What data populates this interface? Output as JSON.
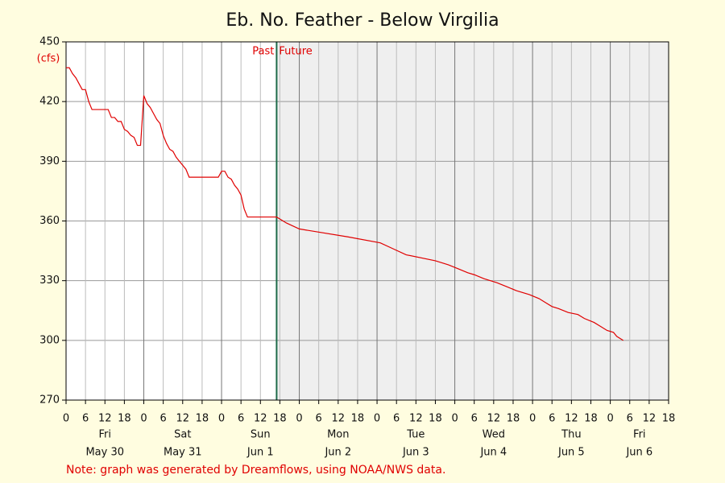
{
  "chart_data": {
    "type": "line",
    "title": "Eb. No. Feather - Below Virgilia",
    "y_label": "(cfs)",
    "note": "Note: graph was generated by Dreamflows, using NOAA/NWS data.",
    "past_label": "Past",
    "future_label": "Future",
    "now_x": 65,
    "days": [
      "Fri",
      "Sat",
      "Sun",
      "Mon",
      "Tue",
      "Wed",
      "Thu",
      "Fri"
    ],
    "dates": [
      "May 30",
      "May 31",
      "Jun 1",
      "Jun 2",
      "Jun 3",
      "Jun 4",
      "Jun 5",
      "Jun 6"
    ],
    "xlim": [
      0,
      186
    ],
    "xticks": [
      0,
      6,
      12,
      18,
      {
        "value": 24,
        "label": "0"
      },
      {
        "value": 30,
        "label": "6"
      },
      {
        "value": 36,
        "label": "12"
      },
      {
        "value": 42,
        "label": "18"
      },
      {
        "value": 48,
        "label": "0"
      },
      {
        "value": 54,
        "label": "6"
      },
      {
        "value": 60,
        "label": "12"
      },
      {
        "value": 66,
        "label": "18"
      },
      {
        "value": 72,
        "label": "0"
      },
      {
        "value": 78,
        "label": "6"
      },
      {
        "value": 84,
        "label": "12"
      },
      {
        "value": 90,
        "label": "18"
      },
      {
        "value": 96,
        "label": "0"
      },
      {
        "value": 102,
        "label": "6"
      },
      {
        "value": 108,
        "label": "12"
      },
      {
        "value": 114,
        "label": "18"
      },
      {
        "value": 120,
        "label": "0"
      },
      {
        "value": 126,
        "label": "6"
      },
      {
        "value": 132,
        "label": "12"
      },
      {
        "value": 138,
        "label": "18"
      },
      {
        "value": 144,
        "label": "0"
      },
      {
        "value": 150,
        "label": "6"
      },
      {
        "value": 156,
        "label": "12"
      },
      {
        "value": 162,
        "label": "18"
      },
      {
        "value": 168,
        "label": "0"
      },
      {
        "value": 174,
        "label": "6"
      },
      {
        "value": 180,
        "label": "12"
      },
      {
        "value": 186,
        "label": "18"
      }
    ],
    "ylim": [
      270,
      450
    ],
    "yticks": [
      270,
      300,
      330,
      360,
      390,
      420,
      450
    ],
    "grid": true,
    "series": [
      {
        "color": "#e00000",
        "x": [
          0,
          1,
          2,
          3,
          4,
          5,
          6,
          7,
          8,
          13,
          14,
          15,
          16,
          17,
          18,
          19,
          20,
          21,
          22,
          23,
          24,
          25,
          26,
          27,
          28,
          29,
          30,
          31,
          32,
          33,
          34,
          35,
          36,
          37,
          38,
          47,
          48,
          49,
          50,
          51,
          52,
          53,
          54,
          55,
          56,
          65,
          68,
          72,
          87,
          97,
          101,
          105,
          114,
          118,
          121,
          124,
          126,
          129,
          133,
          136,
          139,
          143,
          146,
          148,
          150,
          152,
          155,
          158,
          160,
          163,
          165,
          167,
          169,
          170,
          172
        ],
        "values": [
          437,
          437,
          434,
          432,
          429,
          426,
          426,
          420,
          416,
          416,
          412,
          412,
          410,
          410,
          406,
          405,
          403,
          402,
          398,
          398,
          423,
          419,
          417,
          414,
          411,
          409,
          403,
          399,
          396,
          395,
          392,
          390,
          388,
          386,
          382,
          382,
          385,
          385,
          382,
          381,
          378,
          376,
          373,
          366,
          362,
          362,
          359,
          356,
          352,
          349,
          346,
          343,
          340,
          338,
          336,
          334,
          333,
          331,
          329,
          327,
          325,
          323,
          321,
          319,
          317,
          316,
          314,
          313,
          311,
          309,
          307,
          305,
          304,
          302,
          300
        ]
      }
    ]
  }
}
